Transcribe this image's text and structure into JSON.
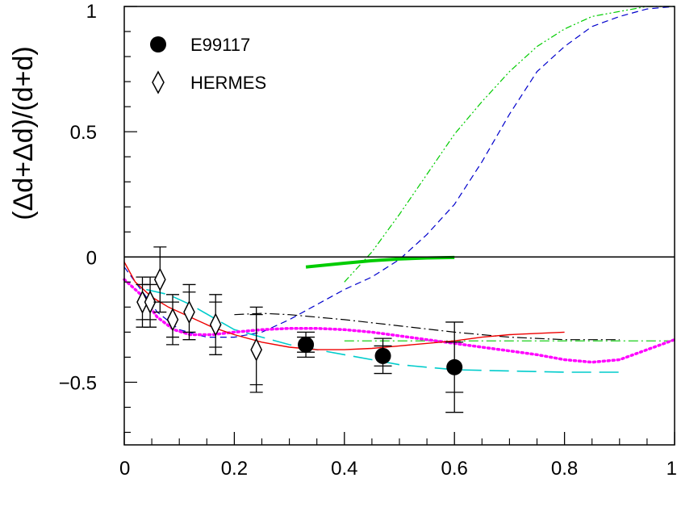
{
  "chart_data": {
    "type": "scatter",
    "title": "",
    "xlabel": "",
    "ylabel": "(Δd+Δd)/(d+d)",
    "xlim": [
      0,
      1
    ],
    "ylim": [
      -0.75,
      1
    ],
    "x_ticks": [
      0,
      0.2,
      0.4,
      0.6,
      0.8,
      1
    ],
    "x_tick_labels": [
      "0",
      "0.2",
      "0.4",
      "0.6",
      "0.8",
      "1"
    ],
    "y_ticks": [
      -0.5,
      0,
      0.5,
      1
    ],
    "y_tick_labels": [
      "−0.5",
      "0",
      "0.5",
      "1"
    ],
    "grid": false,
    "legend": {
      "placement": "top-left",
      "entries": [
        {
          "name": "E99117",
          "marker": "filled-circle"
        },
        {
          "name": "HERMES",
          "marker": "open-diamond"
        }
      ]
    },
    "series": [
      {
        "name": "E99117",
        "marker": "filled-circle",
        "color": "#000000",
        "points": [
          {
            "x": 0.33,
            "y": -0.35,
            "err_stat": 0.03,
            "err_tot": 0.05
          },
          {
            "x": 0.47,
            "y": -0.395,
            "err_stat": 0.04,
            "err_tot": 0.07
          },
          {
            "x": 0.6,
            "y": -0.44,
            "err_stat": 0.1,
            "err_tot": 0.18
          }
        ]
      },
      {
        "name": "HERMES",
        "marker": "open-diamond",
        "color": "#000000",
        "points": [
          {
            "x": 0.033,
            "y": -0.18,
            "err_stat": 0.07,
            "err_tot": 0.1
          },
          {
            "x": 0.047,
            "y": -0.18,
            "err_stat": 0.07,
            "err_tot": 0.1
          },
          {
            "x": 0.065,
            "y": -0.09,
            "err_stat": 0.09,
            "err_tot": 0.13
          },
          {
            "x": 0.088,
            "y": -0.25,
            "err_stat": 0.07,
            "err_tot": 0.1
          },
          {
            "x": 0.118,
            "y": -0.22,
            "err_stat": 0.08,
            "err_tot": 0.11
          },
          {
            "x": 0.166,
            "y": -0.27,
            "err_stat": 0.09,
            "err_tot": 0.12
          },
          {
            "x": 0.24,
            "y": -0.37,
            "err_stat": 0.14,
            "err_tot": 0.17
          }
        ]
      }
    ],
    "curves": [
      {
        "color": "#00cc00",
        "style": "dash-dot-dot",
        "width": 1.2,
        "points": [
          [
            0.4,
            -0.1
          ],
          [
            0.45,
            0.02
          ],
          [
            0.5,
            0.17
          ],
          [
            0.55,
            0.33
          ],
          [
            0.6,
            0.49
          ],
          [
            0.65,
            0.62
          ],
          [
            0.7,
            0.74
          ],
          [
            0.75,
            0.84
          ],
          [
            0.8,
            0.91
          ],
          [
            0.85,
            0.96
          ],
          [
            0.9,
            0.98
          ],
          [
            0.95,
            1.0
          ],
          [
            1.0,
            1.0
          ]
        ]
      },
      {
        "color": "#0000cc",
        "style": "dashed",
        "width": 1.2,
        "points": [
          [
            0.0,
            -0.04
          ],
          [
            0.03,
            -0.13
          ],
          [
            0.06,
            -0.22
          ],
          [
            0.1,
            -0.29
          ],
          [
            0.15,
            -0.32
          ],
          [
            0.2,
            -0.32
          ],
          [
            0.25,
            -0.3
          ],
          [
            0.3,
            -0.25
          ],
          [
            0.35,
            -0.19
          ],
          [
            0.4,
            -0.13
          ],
          [
            0.45,
            -0.08
          ],
          [
            0.5,
            -0.01
          ],
          [
            0.55,
            0.09
          ],
          [
            0.6,
            0.21
          ],
          [
            0.65,
            0.38
          ],
          [
            0.7,
            0.57
          ],
          [
            0.75,
            0.74
          ],
          [
            0.8,
            0.84
          ],
          [
            0.85,
            0.92
          ],
          [
            0.9,
            0.96
          ],
          [
            0.95,
            0.99
          ],
          [
            1.0,
            1.0
          ]
        ]
      },
      {
        "color": "#00cc00",
        "style": "solid",
        "width": 4,
        "points": [
          [
            0.33,
            -0.04
          ],
          [
            0.4,
            -0.025
          ],
          [
            0.45,
            -0.015
          ],
          [
            0.5,
            -0.008
          ],
          [
            0.55,
            -0.004
          ],
          [
            0.6,
            -0.002
          ]
        ]
      },
      {
        "color": "#000000",
        "style": "dash-dot",
        "width": 1.2,
        "points": [
          [
            0.2,
            -0.23
          ],
          [
            0.25,
            -0.225
          ],
          [
            0.3,
            -0.23
          ],
          [
            0.35,
            -0.24
          ],
          [
            0.4,
            -0.25
          ],
          [
            0.5,
            -0.275
          ],
          [
            0.6,
            -0.3
          ],
          [
            0.7,
            -0.32
          ],
          [
            0.8,
            -0.33
          ],
          [
            0.9,
            -0.33
          ]
        ]
      },
      {
        "color": "#00cc00",
        "style": "dash-dot",
        "width": 1.2,
        "points": [
          [
            0.4,
            -0.335
          ],
          [
            0.6,
            -0.335
          ],
          [
            0.8,
            -0.335
          ],
          [
            1.0,
            -0.335
          ]
        ]
      },
      {
        "color": "#00cccc",
        "style": "long-dash",
        "width": 1.6,
        "points": [
          [
            0.04,
            -0.13
          ],
          [
            0.08,
            -0.15
          ],
          [
            0.12,
            -0.19
          ],
          [
            0.16,
            -0.24
          ],
          [
            0.2,
            -0.29
          ],
          [
            0.25,
            -0.32
          ],
          [
            0.3,
            -0.35
          ],
          [
            0.35,
            -0.37
          ],
          [
            0.4,
            -0.39
          ],
          [
            0.45,
            -0.41
          ],
          [
            0.5,
            -0.43
          ],
          [
            0.55,
            -0.44
          ],
          [
            0.6,
            -0.45
          ],
          [
            0.7,
            -0.455
          ],
          [
            0.8,
            -0.46
          ],
          [
            0.9,
            -0.46
          ]
        ]
      },
      {
        "color": "#ff00ff",
        "style": "dotted",
        "width": 3.5,
        "points": [
          [
            0.0,
            -0.09
          ],
          [
            0.03,
            -0.15
          ],
          [
            0.06,
            -0.24
          ],
          [
            0.09,
            -0.29
          ],
          [
            0.12,
            -0.31
          ],
          [
            0.16,
            -0.31
          ],
          [
            0.2,
            -0.3
          ],
          [
            0.25,
            -0.29
          ],
          [
            0.3,
            -0.285
          ],
          [
            0.35,
            -0.285
          ],
          [
            0.4,
            -0.29
          ],
          [
            0.45,
            -0.3
          ],
          [
            0.5,
            -0.315
          ],
          [
            0.55,
            -0.33
          ],
          [
            0.6,
            -0.345
          ],
          [
            0.65,
            -0.36
          ],
          [
            0.7,
            -0.375
          ],
          [
            0.75,
            -0.39
          ],
          [
            0.8,
            -0.41
          ],
          [
            0.85,
            -0.42
          ],
          [
            0.9,
            -0.41
          ],
          [
            0.95,
            -0.37
          ],
          [
            1.0,
            -0.33
          ]
        ]
      },
      {
        "color": "#ee0000",
        "style": "solid",
        "width": 1.4,
        "points": [
          [
            0.0,
            -0.02
          ],
          [
            0.02,
            -0.1
          ],
          [
            0.05,
            -0.16
          ],
          [
            0.08,
            -0.2
          ],
          [
            0.12,
            -0.24
          ],
          [
            0.16,
            -0.28
          ],
          [
            0.2,
            -0.31
          ],
          [
            0.25,
            -0.34
          ],
          [
            0.3,
            -0.36
          ],
          [
            0.35,
            -0.37
          ],
          [
            0.4,
            -0.37
          ],
          [
            0.45,
            -0.365
          ],
          [
            0.5,
            -0.355
          ],
          [
            0.55,
            -0.345
          ],
          [
            0.6,
            -0.335
          ],
          [
            0.65,
            -0.32
          ],
          [
            0.7,
            -0.31
          ],
          [
            0.75,
            -0.305
          ],
          [
            0.8,
            -0.3
          ]
        ]
      }
    ]
  }
}
